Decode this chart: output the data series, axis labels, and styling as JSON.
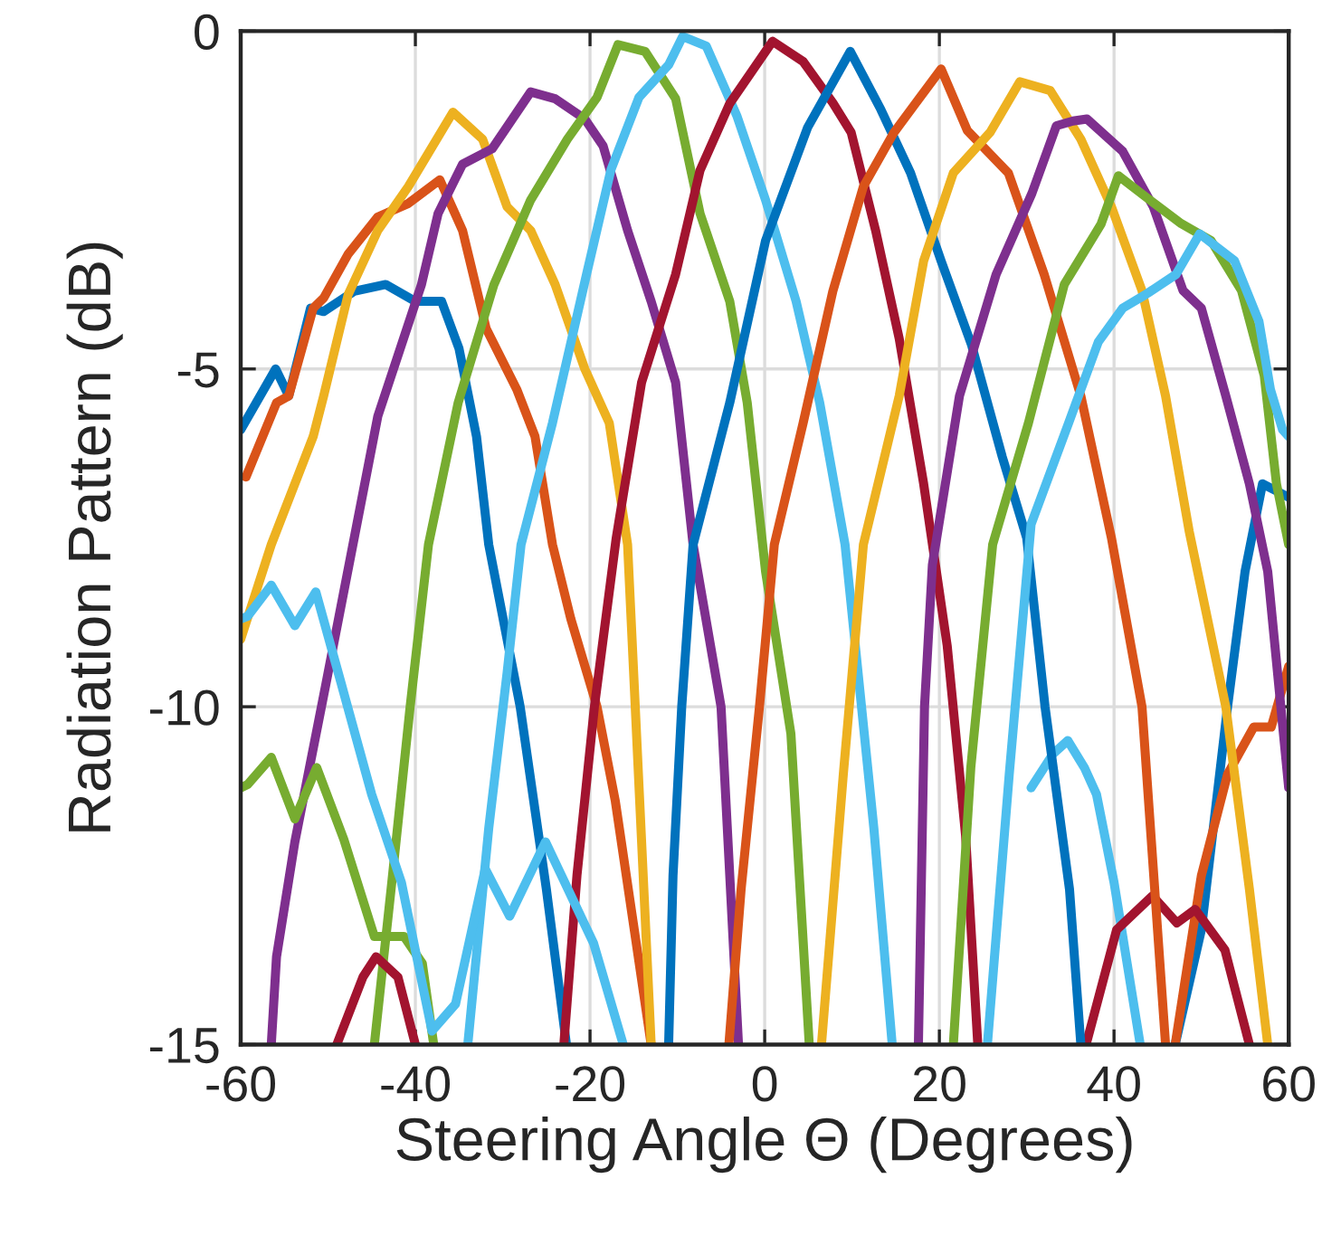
{
  "chart_data": {
    "type": "line",
    "xlabel": "Steering Angle Θ (Degrees)",
    "ylabel": "Radiation Pattern (dB)",
    "xlim": [
      -60,
      60
    ],
    "ylim": [
      -15,
      0
    ],
    "xticks": [
      -60,
      -40,
      -20,
      0,
      20,
      40,
      60
    ],
    "yticks": [
      -15,
      -10,
      -5,
      0
    ],
    "grid": true,
    "line_style": "solid",
    "series": [
      {
        "color": "#0072bd",
        "x": [
          -60,
          -56,
          -54.5,
          -52,
          -50.5,
          -47,
          -43.4,
          -40,
          -37,
          -35,
          -33,
          -31.6,
          -28,
          -25,
          -22.7,
          0,
          47,
          50,
          53,
          55,
          57,
          58.5,
          60
        ],
        "values": [
          -5.9,
          -5.0,
          -5.4,
          -4.1,
          -4.15,
          -3.85,
          -3.75,
          -4.0,
          -4.0,
          -4.7,
          -6.0,
          -7.6,
          -10,
          -12.7,
          -15,
          null,
          -15,
          -13.3,
          -10,
          -8,
          -6.7,
          -6.8,
          -6.9
        ]
      },
      {
        "color": "#d95319",
        "x": [
          -59.4,
          -55.9,
          -54.5,
          -51.7,
          -50.5,
          -47.7,
          -44.3,
          -40.8,
          -37.2,
          -34.6,
          -31.9,
          -28.4,
          -26.3,
          -24.3,
          -22.2,
          -19.2,
          -17.1,
          -13,
          0,
          47,
          50,
          53,
          56,
          58,
          60
        ],
        "values": [
          -6.6,
          -5.5,
          -5.4,
          -4.1,
          -3.95,
          -3.3,
          -2.75,
          -2.55,
          -2.2,
          -2.95,
          -4.4,
          -5.3,
          -6.0,
          -7.6,
          -8.7,
          -10,
          -11.4,
          -15,
          null,
          -15,
          -12.5,
          -11,
          -10.3,
          -10.3,
          -9.4
        ]
      },
      {
        "color": "#edb120",
        "x": [
          -60,
          -58,
          -56.5,
          -51.7,
          -50.5,
          -47.7,
          -44.3,
          -40.8,
          -35.7,
          -32.3,
          -29.5,
          -26.8,
          -24,
          -20.6,
          -17.8,
          -15.7,
          -13
        ],
        "values": [
          -9.0,
          -8.2,
          -7.6,
          -6.0,
          -5.4,
          -3.9,
          -2.95,
          -2.3,
          -1.2,
          -1.6,
          -2.6,
          -2.95,
          -3.75,
          -5.0,
          -5.8,
          -7.6,
          -15
        ]
      },
      {
        "color": "#7e2f8e",
        "x": [
          -56.5,
          -55.9,
          -53.8,
          -50.3,
          -46.7,
          -44.3,
          -39.3,
          -37.4,
          -34.6,
          -31.2,
          -26.8,
          -24,
          -20.6,
          -18.5,
          -15.7,
          -13,
          -10.2,
          -8.2,
          -5,
          -3
        ],
        "values": [
          -15,
          -13.7,
          -12,
          -9.7,
          -7.3,
          -5.7,
          -3.75,
          -2.7,
          -1.97,
          -1.74,
          -0.9,
          -1.0,
          -1.3,
          -1.7,
          -2.95,
          -4.0,
          -5.2,
          -7.6,
          -10,
          -15
        ]
      },
      {
        "color": "#77ac30",
        "x": [
          -44.7,
          -42.7,
          -40.6,
          -38.5,
          -35.1,
          -31.0,
          -26.8,
          -22.6,
          -19.2,
          -16.8,
          -13.7,
          -10.2,
          -7.4,
          -4.0,
          -2.0,
          0.1,
          3.0,
          5.1
        ],
        "values": [
          -15,
          -12.6,
          -10,
          -7.6,
          -5.5,
          -3.75,
          -2.5,
          -1.6,
          -0.98,
          -0.2,
          -0.3,
          -1.0,
          -2.7,
          -4.0,
          -5.5,
          -8.0,
          -10.4,
          -15
        ]
      },
      {
        "color": "#4dbeee",
        "x": [
          -34,
          -31.6,
          -29.5,
          -27.9,
          -24.3,
          -20.4,
          -17.6,
          -14.4,
          -11,
          -9.4,
          -6.7,
          -3.2,
          0.1,
          3.6,
          6.3,
          9.2,
          12.5,
          14.6,
          20,
          30.5,
          33,
          34.7,
          36.6,
          38,
          40,
          43
        ],
        "values": [
          -15,
          -11.8,
          -9.5,
          -7.6,
          -5.8,
          -3.6,
          -2.05,
          -0.98,
          -0.5,
          -0.08,
          -0.22,
          -1.25,
          -2.5,
          -4.0,
          -5.5,
          -7.6,
          -11.8,
          -15,
          null,
          -11.2,
          -10.7,
          -10.5,
          -10.9,
          -11.3,
          -12.6,
          -15
        ]
      },
      {
        "color": "#a2142f",
        "x": [
          -49,
          -46,
          -44.5,
          -42,
          -40,
          -30,
          -23,
          -21.5,
          -19.5,
          -17,
          -14.1,
          -10.2,
          -7.4,
          -4.0,
          0.9,
          4.4,
          7.8,
          9.9,
          12.7,
          15.4,
          18.2,
          20.9,
          23,
          24.4,
          30,
          36.8,
          40.3,
          44.4,
          47.2,
          49.3,
          52.7,
          55.5
        ],
        "values": [
          -15,
          -14,
          -13.7,
          -14,
          -15,
          null,
          -15,
          -12.5,
          -10,
          -7.5,
          -5.2,
          -3.6,
          -2.06,
          -1.07,
          -0.15,
          -0.45,
          -1.06,
          -1.5,
          -2.95,
          -4.55,
          -6.7,
          -9.1,
          -11.9,
          -15,
          null,
          -15,
          -13.3,
          -12.8,
          -13.2,
          -13.0,
          -13.6,
          -15
        ]
      },
      {
        "color": "#0072bd",
        "x": [
          -11,
          -10.5,
          -9.5,
          -8.2,
          -4,
          0.1,
          4.9,
          9.8,
          13.3,
          16.7,
          20.2,
          23.7,
          27.2,
          30,
          32.1,
          34.9,
          36.2
        ],
        "values": [
          -15,
          -12.5,
          -10,
          -7.6,
          -5.5,
          -3.1,
          -1.43,
          -0.3,
          -1.16,
          -2.1,
          -3.4,
          -4.65,
          -6.3,
          -7.5,
          -10,
          -12.7,
          -15
        ]
      },
      {
        "color": "#d95319",
        "x": [
          -4.1,
          -2.7,
          -0.6,
          1.1,
          4.4,
          7.8,
          11.3,
          14.8,
          20.2,
          23.2,
          27.9,
          32,
          36.2,
          39.7,
          43.2,
          45.9
        ],
        "values": [
          -15,
          -12.7,
          -10,
          -7.6,
          -5.8,
          -3.85,
          -2.3,
          -1.5,
          -0.56,
          -1.47,
          -2.1,
          -3.6,
          -5.4,
          -7.5,
          -10,
          -15
        ]
      },
      {
        "color": "#edb120",
        "x": [
          6.5,
          9,
          11.3,
          15.4,
          18.2,
          21.6,
          25.8,
          29.2,
          32.7,
          36.2,
          39.7,
          43.2,
          45.9,
          48.6,
          52.8,
          55.5,
          57.6
        ],
        "values": [
          -15,
          -11,
          -7.6,
          -5.4,
          -3.4,
          -2.1,
          -1.5,
          -0.75,
          -0.88,
          -1.6,
          -2.6,
          -3.84,
          -5.4,
          -7.4,
          -10,
          -12.7,
          -15
        ]
      },
      {
        "color": "#7e2f8e",
        "x": [
          17.6,
          18.3,
          19.2,
          22.3,
          26.5,
          30.6,
          33.4,
          35.3,
          36.9,
          41.0,
          44.5,
          47.9,
          50.0,
          52.8,
          55.5,
          57.6,
          60
        ],
        "values": [
          -15,
          -10,
          -7.9,
          -5.4,
          -3.6,
          -2.4,
          -1.4,
          -1.33,
          -1.3,
          -1.78,
          -2.6,
          -3.84,
          -4.1,
          -5.4,
          -6.7,
          -8.0,
          -11.2
        ]
      },
      {
        "color": "#77ac30",
        "x": [
          -60,
          -59.2,
          -56.5,
          -53.8,
          -51.3,
          -48.2,
          -44.7,
          -41.3,
          -39.2,
          -37.9,
          0,
          21.6,
          23.6,
          26.1,
          30.2,
          34.3,
          38.5,
          40.5,
          43.6,
          47.7,
          51.1,
          54.6,
          57.2,
          58.6,
          60
        ],
        "values": [
          -11.2,
          -11.15,
          -10.75,
          -11.66,
          -10.9,
          -11.96,
          -13.4,
          -13.4,
          -13.8,
          -15,
          null,
          -15,
          -10.9,
          -7.6,
          -5.8,
          -3.75,
          -2.86,
          -2.14,
          -2.45,
          -2.85,
          -3.1,
          -3.84,
          -5.1,
          -6.7,
          -7.6
        ]
      },
      {
        "color": "#4dbeee",
        "x": [
          -60,
          -59.2,
          -56.5,
          -53.8,
          -51.4,
          -48.4,
          -45,
          -41.6,
          -38.1,
          -35.4,
          -32,
          -29.2,
          -25.1,
          -19.6,
          -16.2,
          0,
          25.5,
          28,
          30.5,
          34.8,
          38.2,
          41,
          43.6,
          47.1,
          49.8,
          53.8,
          56.6,
          57.9,
          59.3,
          60
        ],
        "values": [
          -8.7,
          -8.66,
          -8.2,
          -8.8,
          -8.3,
          -9.7,
          -11.3,
          -12.6,
          -14.8,
          -14.4,
          -12.4,
          -13.1,
          -12.0,
          -13.5,
          -15,
          null,
          -15,
          -11,
          -7.3,
          -5.8,
          -4.6,
          -4.1,
          -3.9,
          -3.6,
          -3.0,
          -3.4,
          -4.3,
          -5.3,
          -5.9,
          -6.0
        ]
      }
    ]
  }
}
